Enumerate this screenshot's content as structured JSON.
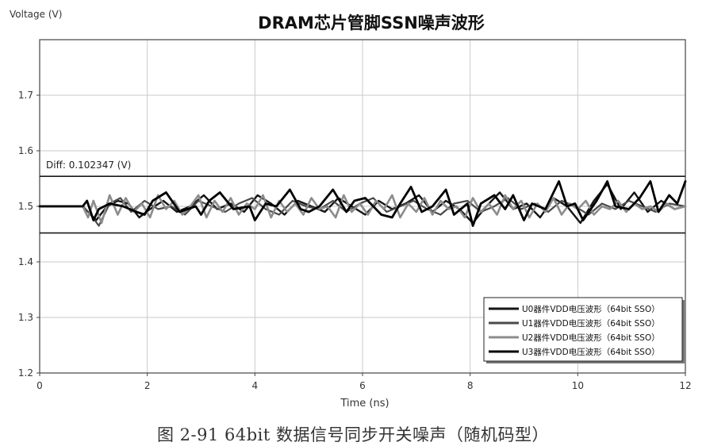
{
  "caption": "图 2-91    64bit 数据信号同步开关噪声（随机码型）",
  "chart_data": {
    "type": "line",
    "title": "DRAM芯片管脚SSN噪声波形",
    "ylabel": "Voltage (V)",
    "xlabel": "Time (ns)",
    "xlim": [
      0,
      12
    ],
    "ylim": [
      1.2,
      1.8
    ],
    "xticks": [
      0,
      2,
      4,
      6,
      8,
      10,
      12
    ],
    "yticks": [
      1.2,
      1.3,
      1.4,
      1.5,
      1.6,
      1.7
    ],
    "grid": true,
    "legend_position": "bottom-right",
    "annotation": "Diff: 0.102347 (V)",
    "markers": {
      "upper": 1.554,
      "lower": 1.452
    },
    "series": [
      {
        "name": "U0器件VDD电压波形（64bit SSO）",
        "color": "#151515",
        "x": [
          0,
          0.8,
          0.9,
          1.05,
          1.25,
          1.45,
          1.65,
          1.85,
          2.05,
          2.3,
          2.55,
          2.8,
          3.05,
          3.3,
          3.55,
          3.8,
          4.05,
          4.3,
          4.55,
          4.8,
          5.05,
          5.3,
          5.55,
          5.8,
          6.05,
          6.3,
          6.55,
          6.8,
          7.05,
          7.3,
          7.55,
          7.8,
          8.05,
          8.3,
          8.55,
          8.8,
          9.05,
          9.3,
          9.55,
          9.8,
          10.05,
          10.3,
          10.55,
          10.8,
          11.05,
          11.3,
          11.55,
          11.8,
          12
        ],
        "y": [
          1.5,
          1.5,
          1.49,
          1.475,
          1.5,
          1.51,
          1.505,
          1.48,
          1.495,
          1.51,
          1.49,
          1.5,
          1.52,
          1.495,
          1.505,
          1.49,
          1.52,
          1.505,
          1.485,
          1.51,
          1.5,
          1.49,
          1.515,
          1.5,
          1.485,
          1.51,
          1.495,
          1.505,
          1.52,
          1.49,
          1.51,
          1.495,
          1.47,
          1.5,
          1.525,
          1.495,
          1.505,
          1.48,
          1.515,
          1.5,
          1.47,
          1.51,
          1.54,
          1.495,
          1.525,
          1.49,
          1.51,
          1.495,
          1.5
        ]
      },
      {
        "name": "U1器件VDD电压波形（64bit SSO）",
        "color": "#4a4a4a",
        "x": [
          0,
          0.8,
          0.95,
          1.1,
          1.3,
          1.5,
          1.7,
          1.95,
          2.2,
          2.45,
          2.7,
          2.95,
          3.2,
          3.45,
          3.7,
          3.95,
          4.2,
          4.45,
          4.7,
          4.95,
          5.2,
          5.45,
          5.7,
          5.95,
          6.2,
          6.45,
          6.7,
          6.95,
          7.2,
          7.45,
          7.7,
          7.95,
          8.2,
          8.45,
          8.7,
          8.95,
          9.2,
          9.45,
          9.7,
          9.95,
          10.2,
          10.45,
          10.7,
          10.95,
          11.2,
          11.45,
          11.7,
          12
        ],
        "y": [
          1.5,
          1.5,
          1.485,
          1.465,
          1.505,
          1.515,
          1.49,
          1.51,
          1.495,
          1.5,
          1.485,
          1.51,
          1.5,
          1.49,
          1.505,
          1.515,
          1.495,
          1.485,
          1.51,
          1.5,
          1.495,
          1.51,
          1.49,
          1.505,
          1.515,
          1.49,
          1.5,
          1.51,
          1.495,
          1.485,
          1.505,
          1.51,
          1.49,
          1.5,
          1.515,
          1.495,
          1.505,
          1.49,
          1.51,
          1.5,
          1.485,
          1.505,
          1.495,
          1.51,
          1.5,
          1.49,
          1.505,
          1.5
        ]
      },
      {
        "name": "U2器件VDD电压波形（64bit SSO）",
        "color": "#8c8c8c",
        "x": [
          0,
          0.8,
          0.9,
          1.0,
          1.15,
          1.3,
          1.45,
          1.6,
          1.75,
          1.9,
          2.05,
          2.2,
          2.35,
          2.5,
          2.65,
          2.8,
          2.95,
          3.1,
          3.25,
          3.4,
          3.55,
          3.7,
          3.85,
          4.0,
          4.15,
          4.3,
          4.45,
          4.6,
          4.75,
          4.9,
          5.05,
          5.2,
          5.35,
          5.5,
          5.65,
          5.8,
          5.95,
          6.1,
          6.25,
          6.4,
          6.55,
          6.7,
          6.85,
          7.0,
          7.15,
          7.3,
          7.45,
          7.6,
          7.75,
          7.9,
          8.05,
          8.2,
          8.35,
          8.5,
          8.65,
          8.8,
          8.95,
          9.1,
          9.25,
          9.4,
          9.55,
          9.7,
          9.85,
          10.0,
          10.15,
          10.3,
          10.45,
          10.6,
          10.75,
          10.9,
          11.05,
          11.2,
          11.35,
          11.5,
          11.65,
          11.8,
          12
        ],
        "y": [
          1.5,
          1.5,
          1.48,
          1.51,
          1.47,
          1.52,
          1.485,
          1.515,
          1.49,
          1.505,
          1.48,
          1.52,
          1.495,
          1.51,
          1.485,
          1.5,
          1.52,
          1.48,
          1.51,
          1.49,
          1.515,
          1.485,
          1.505,
          1.495,
          1.52,
          1.48,
          1.51,
          1.49,
          1.505,
          1.485,
          1.515,
          1.495,
          1.5,
          1.48,
          1.52,
          1.49,
          1.505,
          1.485,
          1.51,
          1.495,
          1.52,
          1.48,
          1.505,
          1.49,
          1.515,
          1.485,
          1.51,
          1.495,
          1.5,
          1.48,
          1.515,
          1.49,
          1.505,
          1.485,
          1.52,
          1.495,
          1.51,
          1.48,
          1.505,
          1.49,
          1.515,
          1.485,
          1.505,
          1.495,
          1.51,
          1.485,
          1.5,
          1.495,
          1.51,
          1.49,
          1.505,
          1.495,
          1.5,
          1.49,
          1.505,
          1.495,
          1.5
        ]
      },
      {
        "name": "U3器件VDD电压波形（64bit SSO）",
        "color": "#000000",
        "x": [
          0,
          0.8,
          0.88,
          1.0,
          1.1,
          1.3,
          1.55,
          1.8,
          1.95,
          2.1,
          2.35,
          2.6,
          2.9,
          3.0,
          3.15,
          3.35,
          3.6,
          3.9,
          4.0,
          4.2,
          4.4,
          4.65,
          4.85,
          5.0,
          5.2,
          5.45,
          5.7,
          5.85,
          6.05,
          6.35,
          6.55,
          6.7,
          6.9,
          7.1,
          7.3,
          7.55,
          7.7,
          7.95,
          8.05,
          8.2,
          8.45,
          8.65,
          8.8,
          9.0,
          9.15,
          9.4,
          9.65,
          9.8,
          9.95,
          10.1,
          10.35,
          10.55,
          10.7,
          10.95,
          11.15,
          11.35,
          11.5,
          11.7,
          11.85,
          12
        ],
        "y": [
          1.5,
          1.5,
          1.51,
          1.475,
          1.495,
          1.505,
          1.5,
          1.49,
          1.485,
          1.51,
          1.525,
          1.49,
          1.5,
          1.485,
          1.51,
          1.525,
          1.495,
          1.5,
          1.475,
          1.505,
          1.5,
          1.53,
          1.495,
          1.49,
          1.5,
          1.53,
          1.49,
          1.51,
          1.515,
          1.485,
          1.48,
          1.505,
          1.535,
          1.49,
          1.5,
          1.53,
          1.485,
          1.505,
          1.465,
          1.505,
          1.52,
          1.495,
          1.52,
          1.475,
          1.505,
          1.495,
          1.545,
          1.5,
          1.505,
          1.475,
          1.51,
          1.545,
          1.5,
          1.495,
          1.515,
          1.545,
          1.49,
          1.52,
          1.505,
          1.545
        ]
      }
    ]
  }
}
